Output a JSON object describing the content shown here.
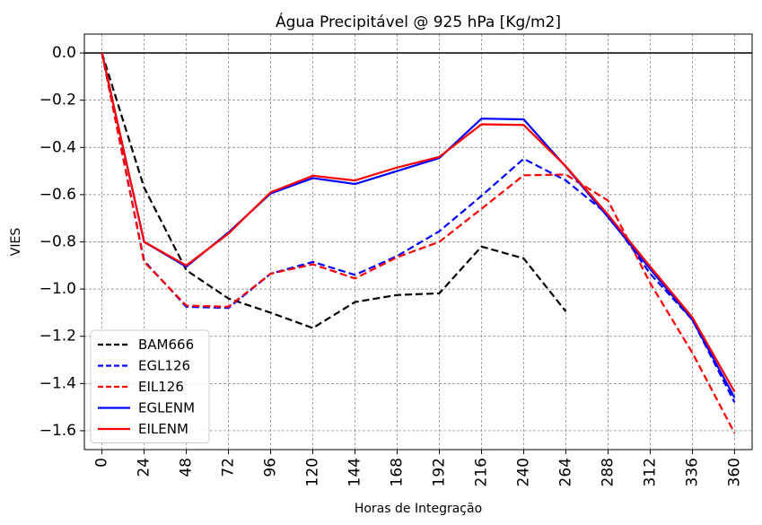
{
  "chart_data": {
    "type": "line",
    "title": "Água Precipitável @ 925 hPa [Kg/m2]",
    "xlabel": "Horas de Integração",
    "ylabel": "VIES",
    "x": [
      0,
      24,
      48,
      72,
      96,
      120,
      144,
      168,
      192,
      216,
      240,
      264,
      288,
      312,
      336,
      360
    ],
    "xticks": [
      "0",
      "24",
      "48",
      "72",
      "96",
      "120",
      "144",
      "168",
      "192",
      "216",
      "240",
      "264",
      "288",
      "312",
      "336",
      "360"
    ],
    "ylim": [
      -1.68,
      0.08
    ],
    "yticks": [
      0.0,
      -0.2,
      -0.4,
      -0.6,
      -0.8,
      -1.0,
      -1.2,
      -1.4,
      -1.6
    ],
    "ytick_labels": [
      "0.0",
      "−0.2",
      "−0.4",
      "−0.6",
      "−0.8",
      "−1.0",
      "−1.2",
      "−1.4",
      "−1.6"
    ],
    "grid": true,
    "zero_line": true,
    "legend_position": "lower-left",
    "series": [
      {
        "name": "BAM666",
        "color": "#000000",
        "dash": "dashed",
        "values": [
          0.0,
          -0.57,
          -0.92,
          -1.04,
          -1.1,
          -1.165,
          -1.055,
          -1.025,
          -1.018,
          -0.82,
          -0.87,
          -1.095,
          null,
          null,
          null,
          null
        ]
      },
      {
        "name": "EGL126",
        "color": "#0000ff",
        "dash": "dashed",
        "values": [
          0.0,
          -0.88,
          -1.075,
          -1.08,
          -0.935,
          -0.885,
          -0.94,
          -0.86,
          -0.755,
          -0.605,
          -0.448,
          -0.54,
          -0.685,
          -0.935,
          -1.13,
          -1.48
        ]
      },
      {
        "name": "EIL126",
        "color": "#ff0000",
        "dash": "dashed",
        "values": [
          0.0,
          -0.885,
          -1.07,
          -1.075,
          -0.935,
          -0.895,
          -0.955,
          -0.865,
          -0.8,
          -0.66,
          -0.518,
          -0.515,
          -0.625,
          -0.975,
          -1.27,
          -1.61
        ]
      },
      {
        "name": "EGLENM",
        "color": "#0000ff",
        "dash": "solid",
        "values": [
          0.0,
          -0.8,
          -0.905,
          -0.76,
          -0.595,
          -0.53,
          -0.555,
          -0.5,
          -0.445,
          -0.278,
          -0.281,
          -0.482,
          -0.695,
          -0.915,
          -1.13,
          -1.46
        ]
      },
      {
        "name": "EILENM",
        "color": "#ff0000",
        "dash": "solid",
        "values": [
          0.0,
          -0.8,
          -0.9,
          -0.765,
          -0.59,
          -0.52,
          -0.54,
          -0.485,
          -0.44,
          -0.302,
          -0.305,
          -0.48,
          -0.685,
          -0.905,
          -1.12,
          -1.435
        ]
      }
    ]
  }
}
